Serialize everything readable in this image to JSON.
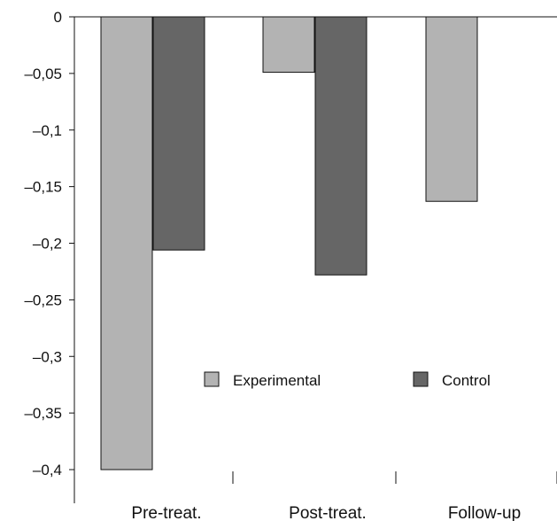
{
  "chart_data": {
    "type": "bar",
    "categories": [
      "Pre-treat.",
      "Post-treat.",
      "Follow-up"
    ],
    "series": [
      {
        "name": "Experimental",
        "values": [
          -0.4,
          -0.049,
          -0.163
        ],
        "color": "#b3b3b3"
      },
      {
        "name": "Control",
        "values": [
          -0.206,
          -0.228,
          null
        ],
        "color": "#666666"
      }
    ],
    "ylim": [
      -0.4,
      0
    ],
    "yticks": [
      {
        "value": 0,
        "label": "0"
      },
      {
        "value": -0.05,
        "label": "–0,05"
      },
      {
        "value": -0.1,
        "label": "–0,1"
      },
      {
        "value": -0.15,
        "label": "–0,15"
      },
      {
        "value": -0.2,
        "label": "–0,2"
      },
      {
        "value": -0.25,
        "label": "–0,25"
      },
      {
        "value": -0.3,
        "label": "–0,3"
      },
      {
        "value": -0.35,
        "label": "–0,35"
      },
      {
        "value": -0.4,
        "label": "–0,4"
      }
    ],
    "grid": false,
    "legend": "inside-lower-center"
  }
}
